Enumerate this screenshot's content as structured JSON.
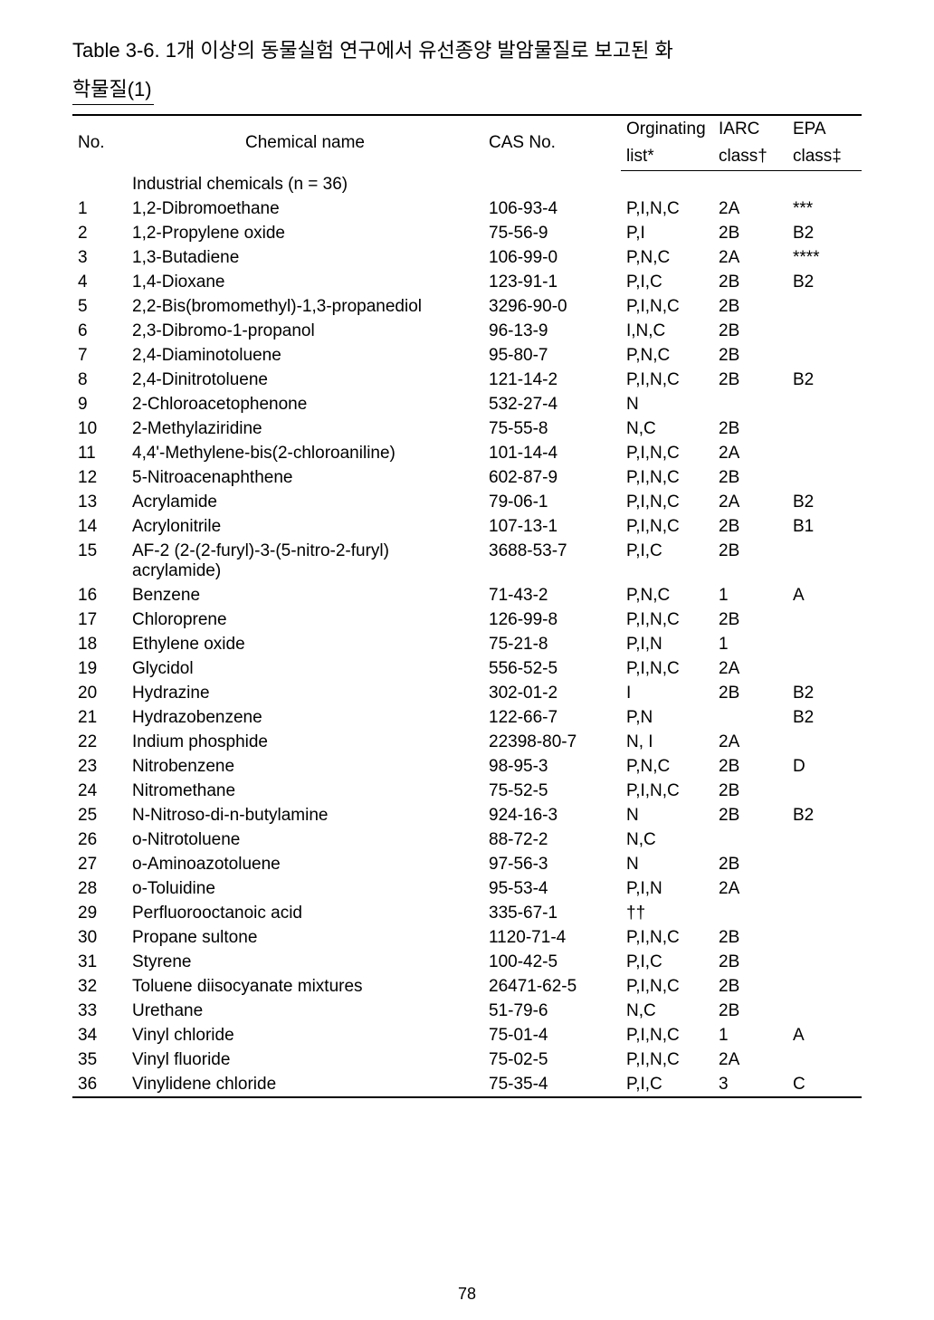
{
  "title_line1": "Table 3-6. 1개 이상의 동물실험 연구에서 유선종양 발암물질로 보고된 화",
  "title_line2": "학물질(1)",
  "page_number": "78",
  "headers": {
    "no": "No.",
    "chem": "Chemical name",
    "cas": "CAS No.",
    "list_top": "Orginating",
    "list_bot": "list*",
    "iarc_top": "IARC",
    "iarc_bot": "class†",
    "epa_top": "EPA",
    "epa_bot": "class‡"
  },
  "section_label": "Industrial chemicals (n = 36)",
  "rows": [
    {
      "no": "1",
      "chem": "1,2-Dibromoethane",
      "cas": "106-93-4",
      "list": "P,I,N,C",
      "iarc": "2A",
      "epa": "***"
    },
    {
      "no": "2",
      "chem": "1,2-Propylene oxide",
      "cas": "75-56-9",
      "list": "P,I",
      "iarc": "2B",
      "epa": "B2"
    },
    {
      "no": "3",
      "chem": "1,3-Butadiene",
      "cas": "106-99-0",
      "list": "P,N,C",
      "iarc": "2A",
      "epa": "****"
    },
    {
      "no": "4",
      "chem": "1,4-Dioxane",
      "cas": "123-91-1",
      "list": "P,I,C",
      "iarc": "2B",
      "epa": "B2"
    },
    {
      "no": "5",
      "chem": "2,2-Bis(bromomethyl)-1,3-propanediol",
      "cas": "3296-90-0",
      "list": "P,I,N,C",
      "iarc": "2B",
      "epa": ""
    },
    {
      "no": "6",
      "chem": "2,3-Dibromo-1-propanol",
      "cas": "96-13-9",
      "list": "I,N,C",
      "iarc": "2B",
      "epa": ""
    },
    {
      "no": "7",
      "chem": "2,4-Diaminotoluene",
      "cas": "95-80-7",
      "list": "P,N,C",
      "iarc": "2B",
      "epa": ""
    },
    {
      "no": "8",
      "chem": "2,4-Dinitrotoluene",
      "cas": "121-14-2",
      "list": "P,I,N,C",
      "iarc": "2B",
      "epa": "B2"
    },
    {
      "no": "9",
      "chem": "2-Chloroacetophenone",
      "cas": "532-27-4",
      "list": "N",
      "iarc": "",
      "epa": ""
    },
    {
      "no": "10",
      "chem": "2-Methylaziridine",
      "cas": "75-55-8",
      "list": "N,C",
      "iarc": "2B",
      "epa": ""
    },
    {
      "no": "11",
      "chem": "4,4'-Methylene-bis(2-chloroaniline)",
      "cas": "101-14-4",
      "list": "P,I,N,C",
      "iarc": "2A",
      "epa": ""
    },
    {
      "no": "12",
      "chem": "5-Nitroacenaphthene",
      "cas": "602-87-9",
      "list": "P,I,N,C",
      "iarc": "2B",
      "epa": ""
    },
    {
      "no": "13",
      "chem": "Acrylamide",
      "cas": "79-06-1",
      "list": "P,I,N,C",
      "iarc": "2A",
      "epa": "B2"
    },
    {
      "no": "14",
      "chem": "Acrylonitrile",
      "cas": "107-13-1",
      "list": "P,I,N,C",
      "iarc": "2B",
      "epa": "B1"
    },
    {
      "no": "15",
      "chem": "AF-2 (2-(2-furyl)-3-(5-nitro-2-furyl) acrylamide)",
      "cas": "3688-53-7",
      "list": "P,I,C",
      "iarc": "2B",
      "epa": ""
    },
    {
      "no": "16",
      "chem": "Benzene",
      "cas": "71-43-2",
      "list": "P,N,C",
      "iarc": "1",
      "epa": "A"
    },
    {
      "no": "17",
      "chem": "Chloroprene",
      "cas": "126-99-8",
      "list": "P,I,N,C",
      "iarc": "2B",
      "epa": ""
    },
    {
      "no": "18",
      "chem": "Ethylene oxide",
      "cas": "75-21-8",
      "list": "P,I,N",
      "iarc": "1",
      "epa": ""
    },
    {
      "no": "19",
      "chem": "Glycidol",
      "cas": "556-52-5",
      "list": "P,I,N,C",
      "iarc": "2A",
      "epa": ""
    },
    {
      "no": "20",
      "chem": "Hydrazine",
      "cas": "302-01-2",
      "list": "I",
      "iarc": "2B",
      "epa": "B2"
    },
    {
      "no": "21",
      "chem": "Hydrazobenzene",
      "cas": "122-66-7",
      "list": "P,N",
      "iarc": "",
      "epa": "B2"
    },
    {
      "no": "22",
      "chem": "Indium phosphide",
      "cas": "22398-80-7",
      "list": "N, I",
      "iarc": "2A",
      "epa": ""
    },
    {
      "no": "23",
      "chem": "Nitrobenzene",
      "cas": "98-95-3",
      "list": "P,N,C",
      "iarc": "2B",
      "epa": "D"
    },
    {
      "no": "24",
      "chem": "Nitromethane",
      "cas": "75-52-5",
      "list": "P,I,N,C",
      "iarc": "2B",
      "epa": ""
    },
    {
      "no": "25",
      "chem": "N-Nitroso-di-n-butylamine",
      "cas": "924-16-3",
      "list": "N",
      "iarc": "2B",
      "epa": "B2"
    },
    {
      "no": "26",
      "chem": "o-Nitrotoluene",
      "cas": "88-72-2",
      "list": "N,C",
      "iarc": "",
      "epa": ""
    },
    {
      "no": "27",
      "chem": "o-Aminoazotoluene",
      "cas": "97-56-3",
      "list": "N",
      "iarc": "2B",
      "epa": ""
    },
    {
      "no": "28",
      "chem": "o-Toluidine",
      "cas": "95-53-4",
      "list": "P,I,N",
      "iarc": "2A",
      "epa": ""
    },
    {
      "no": "29",
      "chem": "Perfluorooctanoic acid",
      "cas": "335-67-1",
      "list": "††",
      "iarc": "",
      "epa": ""
    },
    {
      "no": "30",
      "chem": "Propane sultone",
      "cas": "1120-71-4",
      "list": "P,I,N,C",
      "iarc": "2B",
      "epa": ""
    },
    {
      "no": "31",
      "chem": "Styrene",
      "cas": "100-42-5",
      "list": "P,I,C",
      "iarc": "2B",
      "epa": ""
    },
    {
      "no": "32",
      "chem": "Toluene diisocyanate mixtures",
      "cas": "26471-62-5",
      "list": "P,I,N,C",
      "iarc": "2B",
      "epa": ""
    },
    {
      "no": "33",
      "chem": "Urethane",
      "cas": "51-79-6",
      "list": "N,C",
      "iarc": "2B",
      "epa": ""
    },
    {
      "no": "34",
      "chem": "Vinyl chloride",
      "cas": "75-01-4",
      "list": "P,I,N,C",
      "iarc": "1",
      "epa": "A"
    },
    {
      "no": "35",
      "chem": "Vinyl fluoride",
      "cas": "75-02-5",
      "list": "P,I,N,C",
      "iarc": "2A",
      "epa": ""
    },
    {
      "no": "36",
      "chem": "Vinylidene chloride",
      "cas": "75-35-4",
      "list": "P,I,C",
      "iarc": "3",
      "epa": "C"
    }
  ]
}
